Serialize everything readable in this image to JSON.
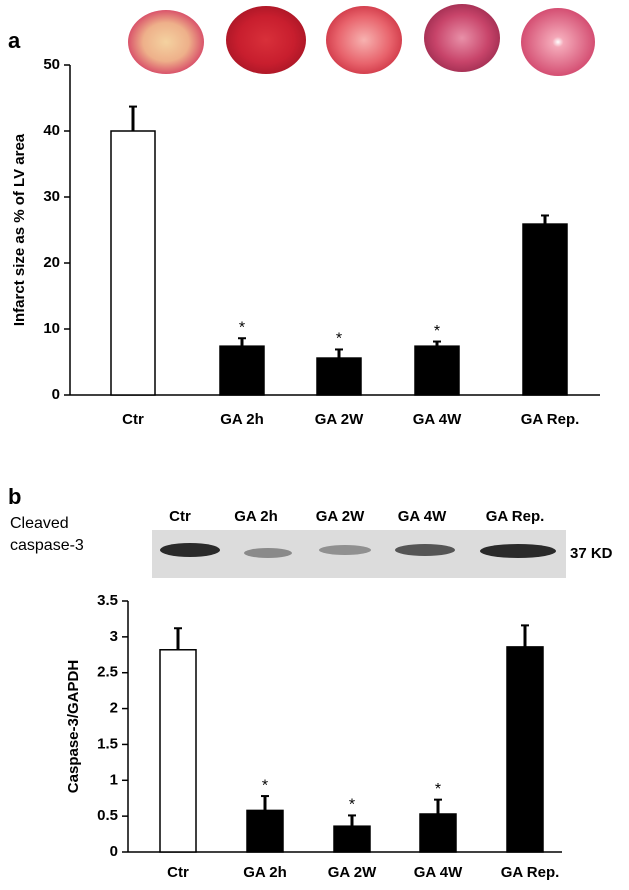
{
  "chart_data": [
    {
      "type": "bar",
      "panel": "a",
      "ylabel": "Infarct size as % of LV area",
      "categories": [
        "Ctr",
        "GA 2h",
        "GA 2W",
        "GA 4W",
        "GA Rep."
      ],
      "values": [
        40,
        7.4,
        5.6,
        7.4,
        25.9
      ],
      "errors": [
        3.7,
        1.2,
        1.3,
        0.7,
        1.3
      ],
      "annotations": [
        null,
        "*",
        "*",
        "*",
        null
      ],
      "colors": [
        "#ffffff",
        "#000000",
        "#000000",
        "#000000",
        "#000000"
      ],
      "ylim": [
        0,
        50
      ],
      "yticks": [
        0,
        10,
        20,
        30,
        40,
        50
      ]
    },
    {
      "type": "bar",
      "panel": "b",
      "ylabel": "Caspase-3/GAPDH",
      "categories": [
        "Ctr",
        "GA 2h",
        "GA 2W",
        "GA 4W",
        "GA Rep."
      ],
      "values": [
        2.82,
        0.58,
        0.36,
        0.53,
        2.86
      ],
      "errors": [
        0.3,
        0.2,
        0.15,
        0.2,
        0.3
      ],
      "annotations": [
        null,
        "*",
        "*",
        "*",
        null
      ],
      "colors": [
        "#ffffff",
        "#000000",
        "#000000",
        "#000000",
        "#000000"
      ],
      "ylim": [
        0,
        3.5
      ],
      "yticks": [
        0,
        0.5,
        1,
        1.5,
        2,
        2.5,
        3,
        3.5
      ]
    }
  ],
  "blot": {
    "label": [
      "Cleaved",
      "caspase-3"
    ],
    "lanes": [
      "Ctr",
      "GA 2h",
      "GA 2W",
      "GA 4W",
      "GA Rep."
    ],
    "size": "37 KD"
  }
}
